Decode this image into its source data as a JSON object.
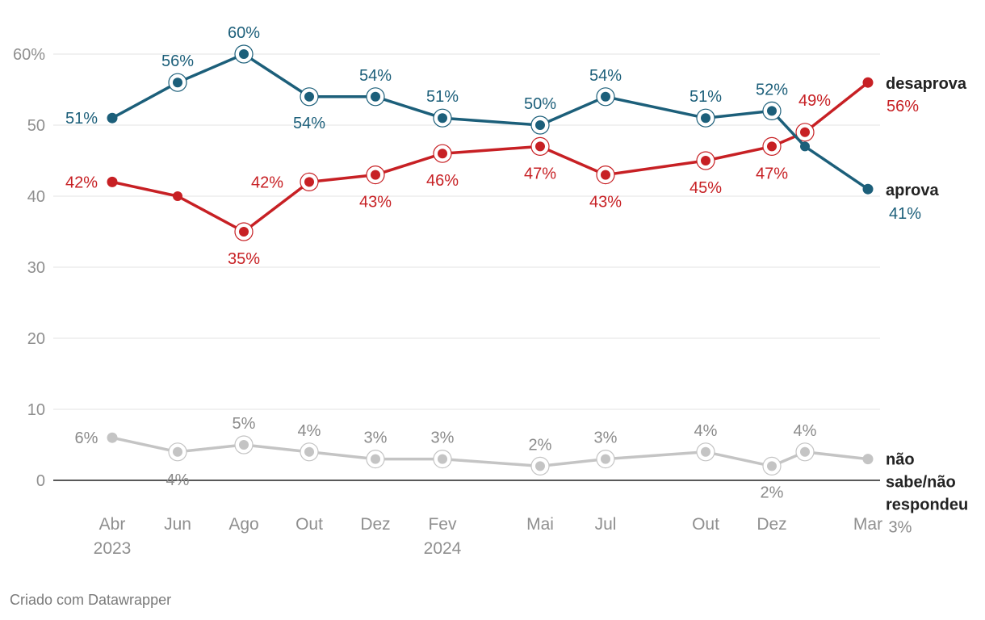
{
  "chart_data": {
    "type": "line",
    "title": "",
    "xlabel": "",
    "ylabel": "",
    "ylim": [
      0,
      60
    ],
    "y_ticks": [
      "60%",
      "50",
      "40",
      "30",
      "20",
      "10",
      "0"
    ],
    "x_index": [
      0,
      1,
      2,
      3,
      4,
      5,
      6,
      7,
      8,
      9,
      10,
      11
    ],
    "x_ticks": [
      {
        "i": 0,
        "month": "Abr",
        "year": "2023"
      },
      {
        "i": 1,
        "month": "Jun",
        "year": ""
      },
      {
        "i": 2,
        "month": "Ago",
        "year": ""
      },
      {
        "i": 3,
        "month": "Out",
        "year": ""
      },
      {
        "i": 4,
        "month": "Dez",
        "year": ""
      },
      {
        "i": 5,
        "month": "Fev",
        "year": "2024"
      },
      {
        "i": 6,
        "month": "Mai",
        "year": ""
      },
      {
        "i": 7,
        "month": "Jul",
        "year": ""
      },
      {
        "i": 8,
        "month": "Out",
        "year": ""
      },
      {
        "i": 9,
        "month": "Dez",
        "year": ""
      },
      {
        "i": 11,
        "month": "Mar",
        "year": ""
      }
    ],
    "series": [
      {
        "name": "aprova",
        "color": "#1c5f7a",
        "values": [
          51,
          56,
          60,
          54,
          54,
          51,
          50,
          54,
          51,
          52,
          47,
          41
        ],
        "labels": [
          "51%",
          "56%",
          "60%",
          "54%",
          "54%",
          "51%",
          "50%",
          "54%",
          "51%",
          "52%",
          "",
          "41%"
        ]
      },
      {
        "name": "desaprova",
        "color": "#c72024",
        "values": [
          42,
          40,
          35,
          42,
          43,
          46,
          47,
          43,
          45,
          47,
          49,
          56
        ],
        "labels": [
          "42%",
          "",
          "35%",
          "42%",
          "43%",
          "46%",
          "47%",
          "43%",
          "45%",
          "47%",
          "49%",
          "56%"
        ]
      },
      {
        "name": "não sabe/não respondeu",
        "name_lines": [
          "não",
          "sabe/não",
          "respondeu"
        ],
        "color": "#c4c4c4",
        "label_color": "#8a8a8a",
        "values": [
          6,
          4,
          5,
          4,
          3,
          3,
          2,
          3,
          4,
          2,
          4,
          3
        ],
        "labels": [
          "6%",
          "4%",
          "5%",
          "4%",
          "3%",
          "3%",
          "2%",
          "3%",
          "4%",
          "2%",
          "4%",
          "3%"
        ]
      }
    ]
  },
  "credit": "Criado com Datawrapper"
}
